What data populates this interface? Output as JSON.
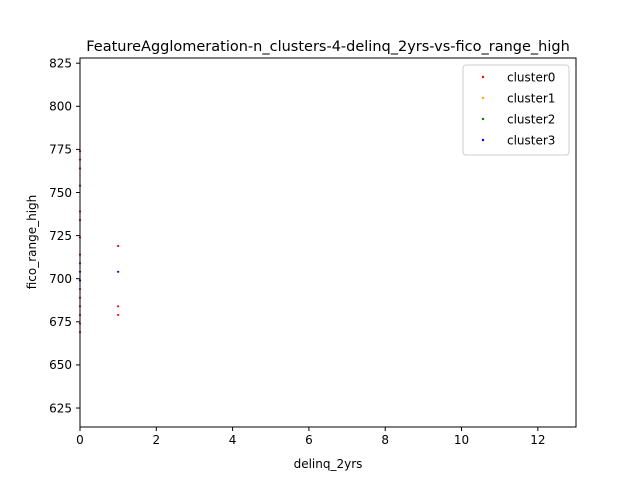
{
  "chart_data": {
    "type": "scatter",
    "title": "FeatureAgglomeration-n_clusters-4-delinq_2yrs-vs-fico_range_high",
    "xlabel": "delinq_2yrs",
    "ylabel": "fico_range_high",
    "xlim": [
      0,
      13
    ],
    "ylim": [
      614,
      828
    ],
    "xticks": [
      0,
      2,
      4,
      6,
      8,
      10,
      12
    ],
    "yticks": [
      625,
      650,
      675,
      700,
      725,
      750,
      775,
      800,
      825
    ],
    "grid": false,
    "legend_position": "top-right",
    "series": [
      {
        "name": "cluster0",
        "color": "#ff0000",
        "points": [
          [
            0,
            669
          ],
          [
            0,
            674
          ],
          [
            0,
            679
          ],
          [
            0,
            684
          ],
          [
            0,
            689
          ],
          [
            0,
            694
          ],
          [
            0,
            699
          ],
          [
            0,
            709
          ],
          [
            0,
            714
          ],
          [
            0,
            724
          ],
          [
            0,
            734
          ],
          [
            0,
            739
          ],
          [
            0,
            754
          ],
          [
            0,
            764
          ],
          [
            0,
            769
          ],
          [
            0,
            774
          ],
          [
            1,
            679
          ],
          [
            1,
            684
          ],
          [
            1,
            719
          ]
        ]
      },
      {
        "name": "cluster1",
        "color": "#ffa500",
        "points": []
      },
      {
        "name": "cluster2",
        "color": "#008000",
        "points": []
      },
      {
        "name": "cluster3",
        "color": "#0000ff",
        "points": [
          [
            1,
            704
          ],
          [
            0,
            699
          ],
          [
            0,
            704
          ]
        ]
      }
    ]
  }
}
